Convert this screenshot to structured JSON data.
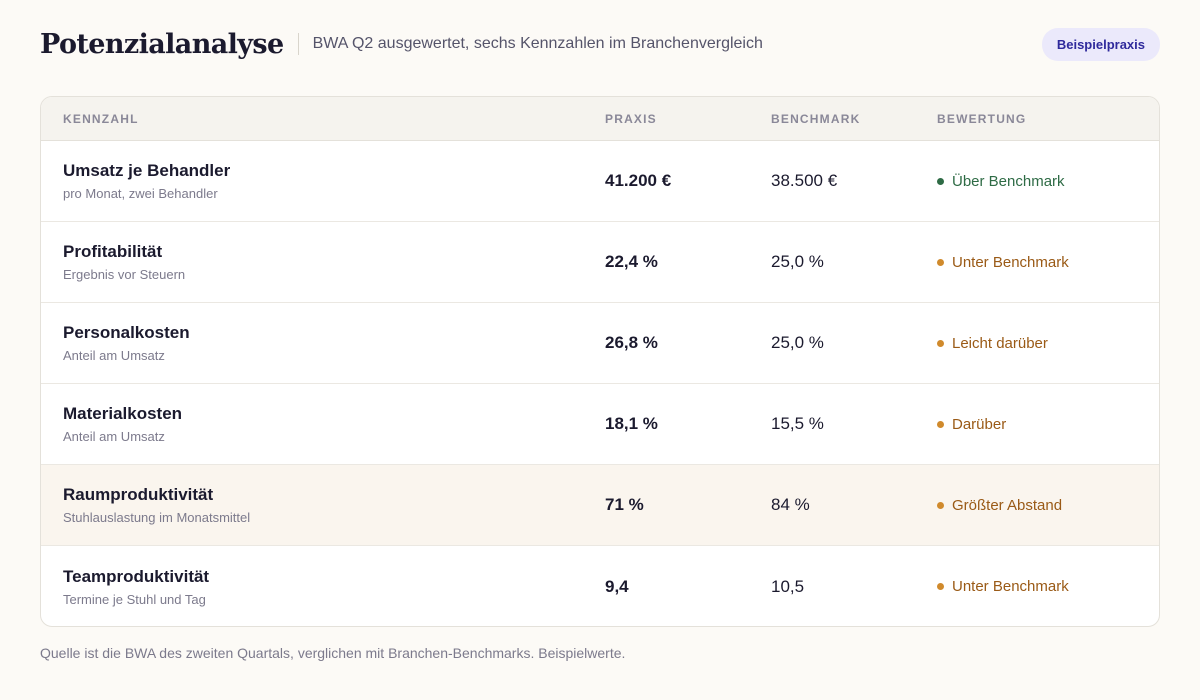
{
  "header": {
    "title": "Potenzialanalyse",
    "subtitle": "BWA Q2 ausgewertet, sechs Kennzahlen im Branchenvergleich",
    "badge": "Beispielpraxis"
  },
  "table": {
    "columns": [
      "KENNZAHL",
      "PRAXIS",
      "BENCHMARK",
      "BEWERTUNG"
    ],
    "rows": [
      {
        "name": "Umsatz je Behandler",
        "sub": "pro Monat, zwei Behandler",
        "praxis": "41.200 €",
        "benchmark": "38.500 €",
        "rating": "Über Benchmark",
        "status_color": "#2e6b45",
        "dot_color": "#2e6b45",
        "highlight": false
      },
      {
        "name": "Profitabilität",
        "sub": "Ergebnis vor Steuern",
        "praxis": "22,4 %",
        "benchmark": "25,0 %",
        "rating": "Unter Benchmark",
        "status_color": "#9a5a16",
        "dot_color": "#d08a2c",
        "highlight": false
      },
      {
        "name": "Personalkosten",
        "sub": "Anteil am Umsatz",
        "praxis": "26,8 %",
        "benchmark": "25,0 %",
        "rating": "Leicht darüber",
        "status_color": "#9a5a16",
        "dot_color": "#d08a2c",
        "highlight": false
      },
      {
        "name": "Materialkosten",
        "sub": "Anteil am Umsatz",
        "praxis": "18,1 %",
        "benchmark": "15,5 %",
        "rating": "Darüber",
        "status_color": "#9a5a16",
        "dot_color": "#d08a2c",
        "highlight": false
      },
      {
        "name": "Raumproduktivität",
        "sub": "Stuhlauslastung im Monatsmittel",
        "praxis": "71 %",
        "benchmark": "84 %",
        "rating": "Größter Abstand",
        "status_color": "#9a5a16",
        "dot_color": "#d08a2c",
        "highlight": true
      },
      {
        "name": "Teamproduktivität",
        "sub": "Termine je Stuhl und Tag",
        "praxis": "9,4",
        "benchmark": "10,5",
        "rating": "Unter Benchmark",
        "status_color": "#9a5a16",
        "dot_color": "#d08a2c",
        "highlight": false
      }
    ]
  },
  "footer": "Quelle ist die BWA des zweiten Quartals, verglichen mit Branchen-Benchmarks. Beispielwerte.",
  "colors": {
    "badge_bg": "#ebe9fb",
    "badge_text": "#2f2a9c",
    "highlight_row": "#faf5ee",
    "positive": "#2e6b45",
    "warning": "#d08a2c"
  }
}
